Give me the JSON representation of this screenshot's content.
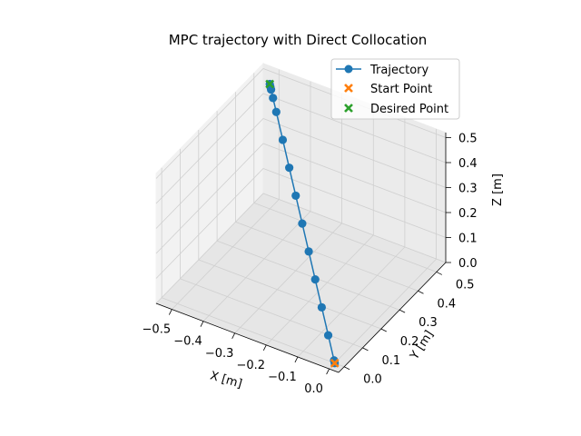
{
  "chart_data": {
    "type": "line3d",
    "title": "MPC trajectory with Direct Collocation",
    "xlabel": "X [m]",
    "ylabel": "Y [m]",
    "zlabel": "Z [m]",
    "xlim": [
      -0.55,
      0.03
    ],
    "ylim": [
      -0.03,
      0.55
    ],
    "zlim": [
      0.0,
      0.52
    ],
    "xticks": [
      "−0.5",
      "−0.4",
      "−0.3",
      "−0.2",
      "−0.1",
      "0.0"
    ],
    "yticks": [
      "0.0",
      "0.1",
      "0.2",
      "0.3",
      "0.4",
      "0.5"
    ],
    "zticks": [
      "0.0",
      "0.1",
      "0.2",
      "0.3",
      "0.4",
      "0.5"
    ],
    "grid": true,
    "legend_position": "top-right",
    "series": [
      {
        "name": "Trajectory",
        "color": "#1f77b4",
        "marker": "circle",
        "x": [
          0.0,
          -0.005,
          -0.05,
          -0.1,
          -0.15,
          -0.2,
          -0.25,
          -0.3,
          -0.35,
          -0.4,
          -0.45,
          -0.475,
          -0.49,
          -0.495,
          -0.5
        ],
        "y": [
          0.0,
          0.005,
          0.05,
          0.1,
          0.15,
          0.2,
          0.25,
          0.3,
          0.35,
          0.4,
          0.45,
          0.475,
          0.49,
          0.495,
          0.5
        ],
        "z": [
          0.0,
          0.005,
          0.05,
          0.1,
          0.15,
          0.2,
          0.25,
          0.3,
          0.35,
          0.4,
          0.45,
          0.475,
          0.49,
          0.495,
          0.5
        ]
      },
      {
        "name": "Start Point",
        "color": "#ff7f0e",
        "marker": "x",
        "x": [
          0.0
        ],
        "y": [
          0.0
        ],
        "z": [
          0.0
        ]
      },
      {
        "name": "Desired Point",
        "color": "#2ca02c",
        "marker": "x",
        "x": [
          -0.5
        ],
        "y": [
          0.5
        ],
        "z": [
          0.5
        ]
      }
    ]
  }
}
